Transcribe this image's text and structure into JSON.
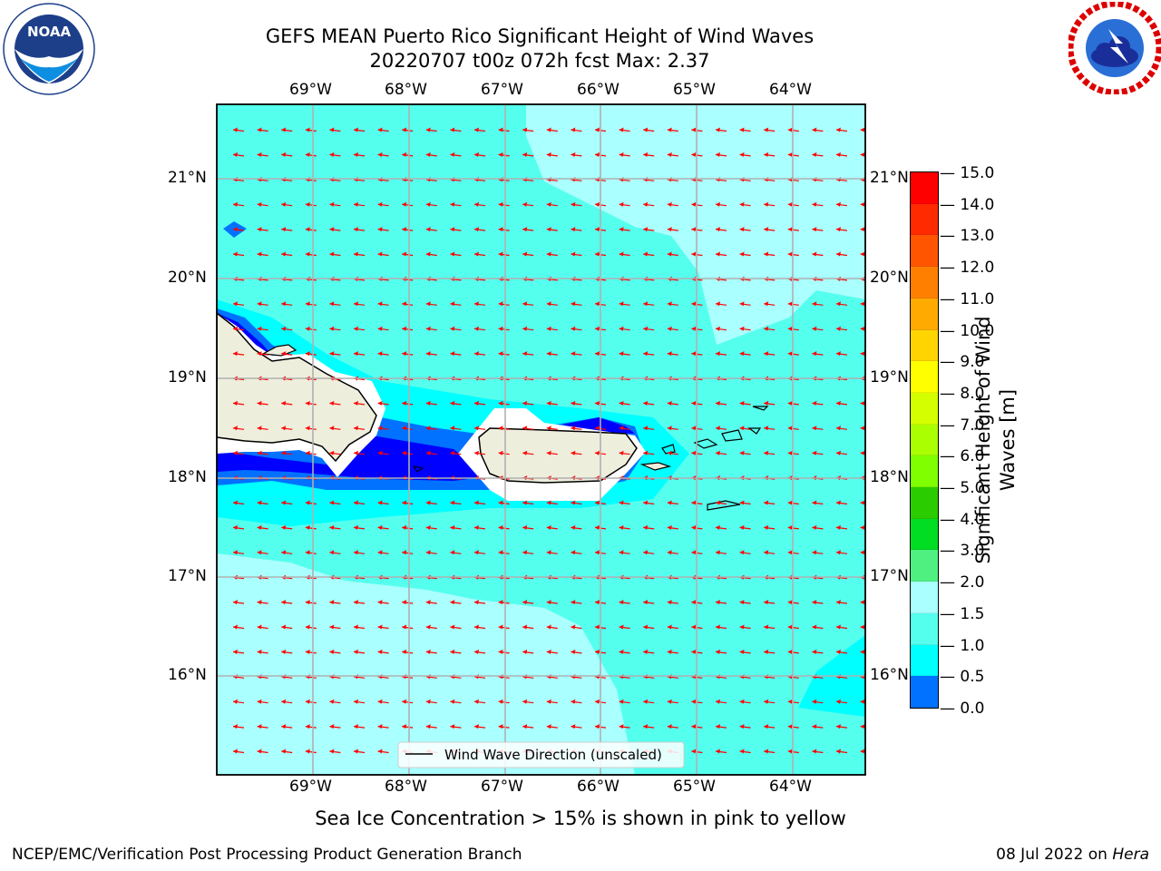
{
  "header": {
    "title_line1": "GEFS MEAN Puerto Rico Significant Height of Wind Waves",
    "title_line2": "20220707 t00z 072h fcst   Max: 2.37"
  },
  "logos": {
    "left": {
      "text": "NOAA",
      "ring_text": "NATIONAL OCEANIC AND ATMOSPHERIC ADMINISTRATION · U.S. DEPARTMENT OF COMMERCE"
    },
    "right": {
      "ring_text": "NATIONAL WEATHER SERVICE"
    }
  },
  "map": {
    "lon_labels": [
      "69°W",
      "68°W",
      "67°W",
      "66°W",
      "65°W",
      "64°W"
    ],
    "lat_labels": [
      "21°N",
      "20°N",
      "19°N",
      "18°N",
      "17°N",
      "16°N"
    ],
    "legend_label": "Wind Wave Direction (unscaled)",
    "colors": {
      "ocean_low": "#00ffff",
      "ocean_mid": "#55ffee",
      "ocean_high": "#aaffff",
      "coast_dark": "#0000ff",
      "coast_blue": "#0072ff",
      "land": "#eeeedd",
      "arrow": "#ff0000",
      "grid": "#b0b0b0"
    }
  },
  "colorbar": {
    "label": "Significant Height of Wind Waves [m]",
    "ticks": [
      "15.0",
      "14.0",
      "13.0",
      "12.0",
      "11.0",
      "10.0",
      "9.0",
      "8.0",
      "7.0",
      "6.0",
      "5.0",
      "4.0",
      "3.0",
      "2.0",
      "1.5",
      "1.0",
      "0.5",
      "0.0"
    ],
    "colors": [
      "#ff0000",
      "#ff2a00",
      "#ff5500",
      "#ff8000",
      "#ffaa00",
      "#ffd400",
      "#ffff00",
      "#d4ff00",
      "#aaff00",
      "#80ff00",
      "#2acc00",
      "#00dd22",
      "#4ff080",
      "#aaffff",
      "#55ffee",
      "#00ffff",
      "#0072ff",
      "#0000ff"
    ]
  },
  "footer": {
    "note": "Sea Ice Concentration > 15% is shown in pink to yellow",
    "credit": "NCEP/EMC/Verification Post Processing Product Generation Branch",
    "date": "08 Jul 2022 on ",
    "host": "Hera"
  }
}
